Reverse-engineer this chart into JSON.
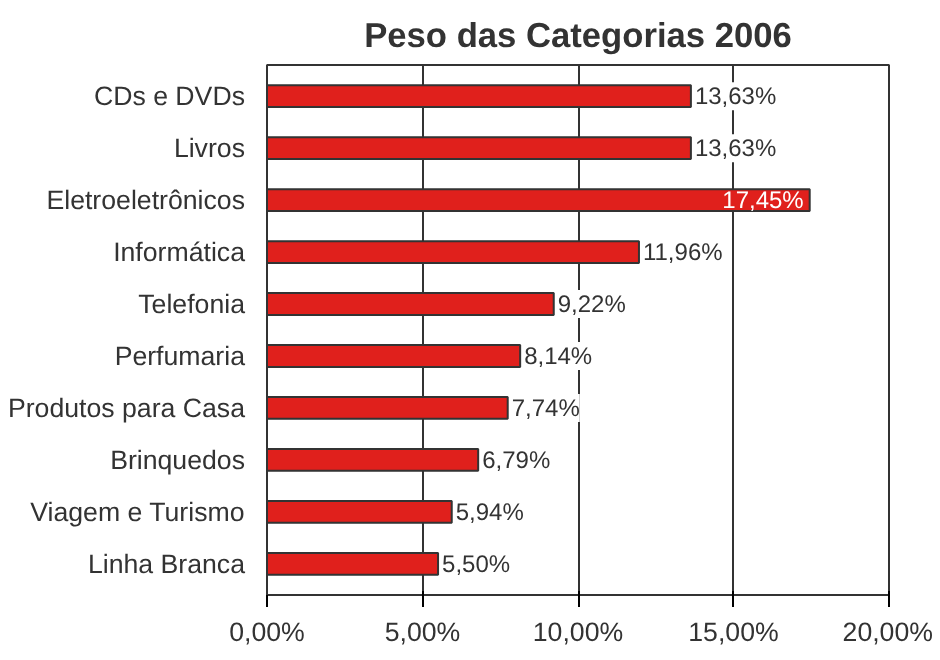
{
  "chart_data": {
    "type": "bar",
    "orientation": "horizontal",
    "title": "Peso das Categorias 2006",
    "categories": [
      "CDs e DVDs",
      "Livros",
      "Eletroeletrônicos",
      "Informática",
      "Telefonia",
      "Perfumaria",
      "Produtos para Casa",
      "Brinquedos",
      "Viagem e Turismo",
      "Linha Branca"
    ],
    "values": [
      13.63,
      13.63,
      17.45,
      11.96,
      9.22,
      8.14,
      7.74,
      6.79,
      5.94,
      5.5
    ],
    "value_labels": [
      "13,63%",
      "13,63%",
      "17,45%",
      "11,96%",
      "9,22%",
      "8,14%",
      "7,74%",
      "6,79%",
      "5,94%",
      "5,50%"
    ],
    "color": "#e0201c",
    "xlim": [
      0,
      20
    ],
    "xticks": [
      {
        "value": 0,
        "label": "0,00%"
      },
      {
        "value": 5,
        "label": "5,00%"
      },
      {
        "value": 10,
        "label": "10,00%"
      },
      {
        "value": 15,
        "label": "15,00%"
      },
      {
        "value": 20,
        "label": "20,00%"
      }
    ],
    "grid": "x"
  }
}
